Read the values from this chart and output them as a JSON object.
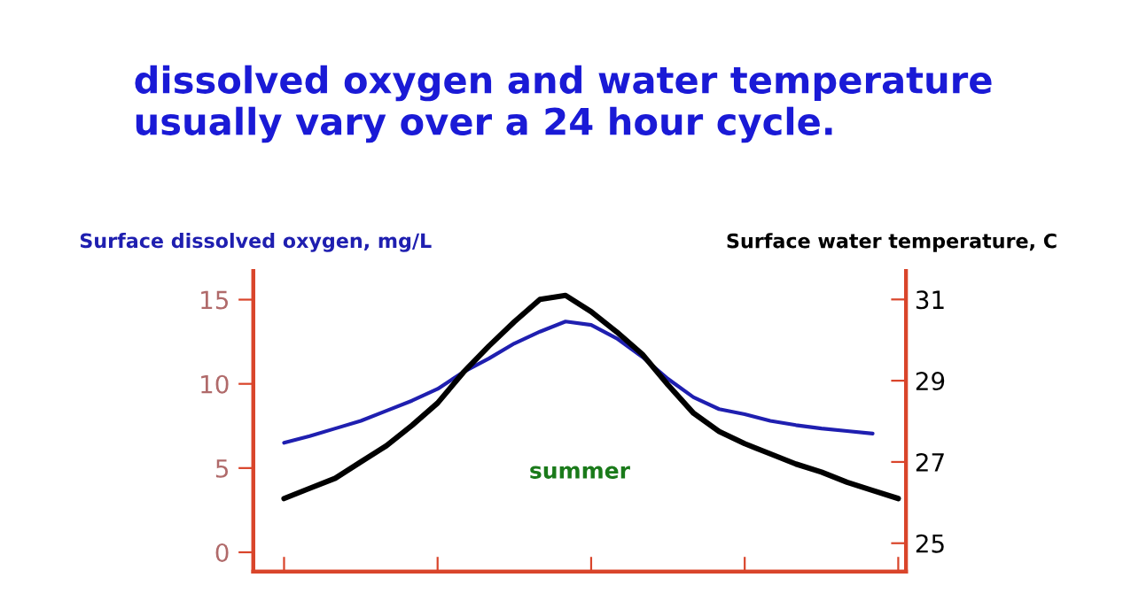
{
  "chart_data": {
    "type": "line",
    "title": "dissolved oxygen and water temperature usually vary over a 24 hour cycle.",
    "ylabel": "Surface dissolved oxygen, mg/L",
    "y2label": "Surface water temperature, C",
    "annotations": [
      "summer"
    ],
    "categories": [
      null,
      null,
      null,
      null,
      null,
      null,
      null,
      null,
      null,
      null,
      null,
      null,
      null,
      null,
      null,
      null,
      null,
      null,
      null,
      null,
      null,
      null,
      null,
      null,
      null
    ],
    "series": [
      {
        "color": "#1f1fb0",
        "values": [
          6.5,
          6.9,
          7.35,
          7.8,
          8.4,
          9.0,
          9.7,
          10.7,
          11.5,
          12.4,
          13.1,
          13.7,
          13.5,
          12.7,
          11.6,
          10.3,
          9.2,
          8.5,
          8.2,
          7.8,
          7.55,
          7.35,
          7.2,
          7.05,
          null
        ]
      },
      {
        "color": "#000000",
        "axis": "y2",
        "values": [
          26.1,
          26.35,
          26.6,
          27.0,
          27.4,
          27.9,
          28.45,
          29.2,
          29.85,
          30.45,
          31.0,
          31.1,
          30.7,
          30.2,
          29.65,
          28.9,
          28.2,
          27.75,
          27.45,
          27.2,
          26.95,
          26.75,
          26.5,
          26.3,
          26.1
        ]
      }
    ],
    "ylim": [
      -1.15,
      16.7
    ],
    "yticks": [
      0,
      5,
      10,
      15
    ],
    "y2lim": [
      24.3,
      31.7
    ],
    "y2ticks": [
      25,
      27,
      29,
      31
    ],
    "tick_labels": "y",
    "grid": false,
    "marker": "none",
    "line_style": "solid"
  }
}
